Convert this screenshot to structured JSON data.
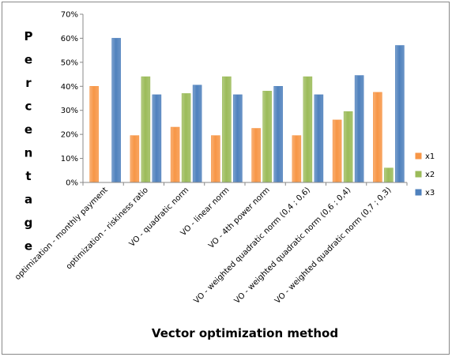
{
  "chart_data": {
    "type": "bar",
    "title": "",
    "xlabel": "Vector optimization method",
    "ylabel": "Percentage",
    "ylim": [
      0,
      70
    ],
    "yticks": [
      "0%",
      "10%",
      "20%",
      "30%",
      "40%",
      "50%",
      "60%",
      "70%"
    ],
    "grid": false,
    "legend_position": "right",
    "categories": [
      "optimization - monthly payment",
      "optimization - riskiness ratio",
      "VO - quadratic norm",
      "VO - linear norm",
      "VO - 4th power norm",
      "VO - weighted quadratic norm (0,4 ; 0,6)",
      "VO - weighted quadratic norm (0,6 ; 0,4)",
      "VO - weighted quadratic norm (0,7 ; 0,3)"
    ],
    "series": [
      {
        "name": "x1",
        "color": "#f79646",
        "values": [
          40,
          19.5,
          23,
          19.5,
          22.5,
          19.5,
          26,
          37.5
        ]
      },
      {
        "name": "x2",
        "color": "#9bbb59",
        "values": [
          0,
          44,
          37,
          44,
          38,
          44,
          29.5,
          6
        ]
      },
      {
        "name": "x3",
        "color": "#4f81bd",
        "values": [
          60,
          36.5,
          40.5,
          36.5,
          40,
          36.5,
          44.5,
          57
        ]
      }
    ]
  }
}
